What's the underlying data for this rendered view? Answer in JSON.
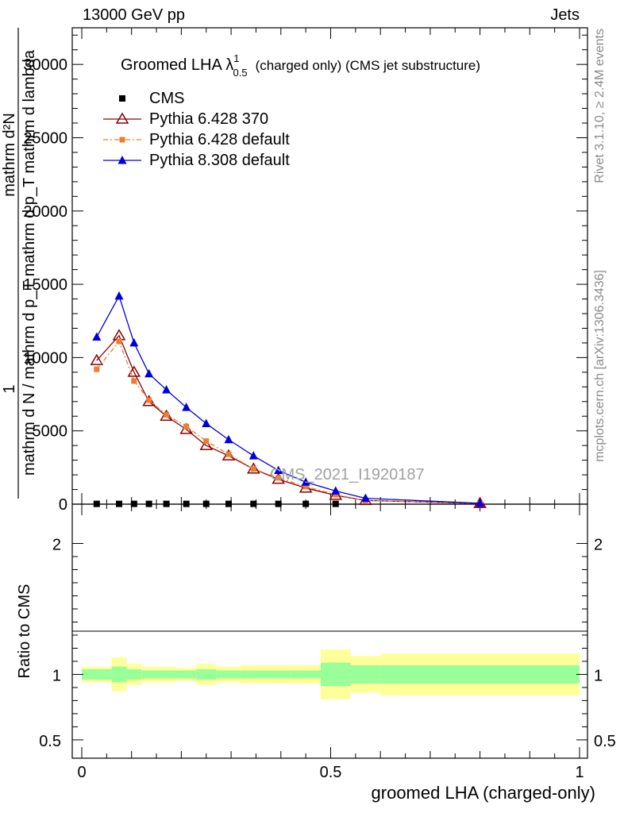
{
  "header": {
    "left": "13000 GeV pp",
    "right": "Jets"
  },
  "side_text": {
    "rivet": "Rivet 3.1.10, ≥ 2.4M events",
    "mcplots": "mcplots.cern.ch [arXiv:1306.3436]"
  },
  "watermark": "CMS_2021_I1920187",
  "chart_data": [
    {
      "type": "line",
      "title": "Groomed LHA λ^1_0.5 (charged only) (CMS jet substructure)",
      "title_main": "Groomed LHA λ",
      "title_sup": "1",
      "title_sub": "0.5",
      "title_rest": "(charged only) (CMS jet substructure)",
      "ylabel_lines": [
        "1",
        "mathrm d N / mathrm d p_T mathrm d p_T mathrm d lambda",
        "mathrm d²N"
      ],
      "xlim": [
        0,
        1
      ],
      "ylim": [
        0,
        32500
      ],
      "y_ticks": [
        0,
        5000,
        10000,
        15000,
        20000,
        25000,
        30000
      ],
      "y_tick_labels": [
        "0",
        "5000",
        "10000",
        "15000",
        "20000",
        "25000",
        "30000"
      ],
      "legend_position": "top-left",
      "series": [
        {
          "name": "CMS",
          "color": "#000000",
          "marker": "square",
          "x": [
            0.03,
            0.075,
            0.105,
            0.135,
            0.17,
            0.21,
            0.25,
            0.295,
            0.345,
            0.395,
            0.45,
            0.51
          ],
          "y": [
            20,
            20,
            20,
            20,
            20,
            20,
            20,
            20,
            20,
            20,
            20,
            20
          ]
        },
        {
          "name": "Pythia 6.428 370",
          "color": "#8b0000",
          "marker": "open-triangle",
          "x": [
            0.03,
            0.075,
            0.105,
            0.135,
            0.17,
            0.21,
            0.25,
            0.295,
            0.345,
            0.395,
            0.45,
            0.51,
            0.57,
            0.8
          ],
          "y": [
            9800,
            11500,
            9000,
            7000,
            6000,
            5100,
            4000,
            3300,
            2400,
            1700,
            1100,
            600,
            250,
            50
          ]
        },
        {
          "name": "Pythia 6.428 default",
          "color": "#ee7d2f",
          "marker": "filled-square",
          "x": [
            0.03,
            0.075,
            0.105,
            0.135,
            0.17,
            0.21,
            0.25,
            0.295,
            0.345,
            0.395,
            0.45,
            0.51,
            0.57,
            0.8
          ],
          "y": [
            9200,
            11100,
            8400,
            7100,
            6100,
            5300,
            4300,
            3400,
            2400,
            1800,
            1200,
            650,
            250,
            50
          ]
        },
        {
          "name": "Pythia 8.308 default",
          "color": "#0000dd",
          "marker": "filled-triangle",
          "x": [
            0.03,
            0.075,
            0.105,
            0.135,
            0.17,
            0.21,
            0.25,
            0.295,
            0.345,
            0.395,
            0.45,
            0.51,
            0.57,
            0.8
          ],
          "y": [
            11400,
            14200,
            11000,
            8900,
            7800,
            6600,
            5500,
            4400,
            3300,
            2300,
            1500,
            900,
            400,
            60
          ]
        }
      ]
    },
    {
      "type": "area",
      "ylabel": "Ratio to CMS",
      "xlabel": "groomed LHA (charged-only)",
      "xlim": [
        0,
        1
      ],
      "ylim": [
        0.36,
        2.3
      ],
      "x_ticks": [
        0,
        0.5,
        1
      ],
      "x_tick_labels": [
        "0",
        "0.5",
        "1"
      ],
      "y_ticks": [
        0.5,
        1,
        2
      ],
      "y_tick_labels": [
        "0.5",
        "1",
        "2"
      ],
      "bands": {
        "inner_color": "#99ff99",
        "outer_color": "#ffff99",
        "edges": [
          0,
          0.06,
          0.09,
          0.12,
          0.15,
          0.19,
          0.23,
          0.27,
          0.32,
          0.37,
          0.42,
          0.48,
          0.54,
          0.6,
          1
        ],
        "inner_lo": [
          0.96,
          0.94,
          0.96,
          0.97,
          0.97,
          0.97,
          0.96,
          0.97,
          0.97,
          0.97,
          0.97,
          0.91,
          0.93,
          0.93
        ],
        "inner_hi": [
          1.04,
          1.06,
          1.04,
          1.03,
          1.03,
          1.03,
          1.04,
          1.03,
          1.03,
          1.03,
          1.03,
          1.09,
          1.07,
          1.07
        ],
        "outer_lo": [
          0.94,
          0.87,
          0.92,
          0.94,
          0.94,
          0.95,
          0.92,
          0.94,
          0.93,
          0.93,
          0.93,
          0.81,
          0.86,
          0.84
        ],
        "outer_hi": [
          1.06,
          1.13,
          1.08,
          1.06,
          1.06,
          1.05,
          1.08,
          1.06,
          1.07,
          1.07,
          1.07,
          1.19,
          1.14,
          1.16
        ]
      }
    }
  ]
}
